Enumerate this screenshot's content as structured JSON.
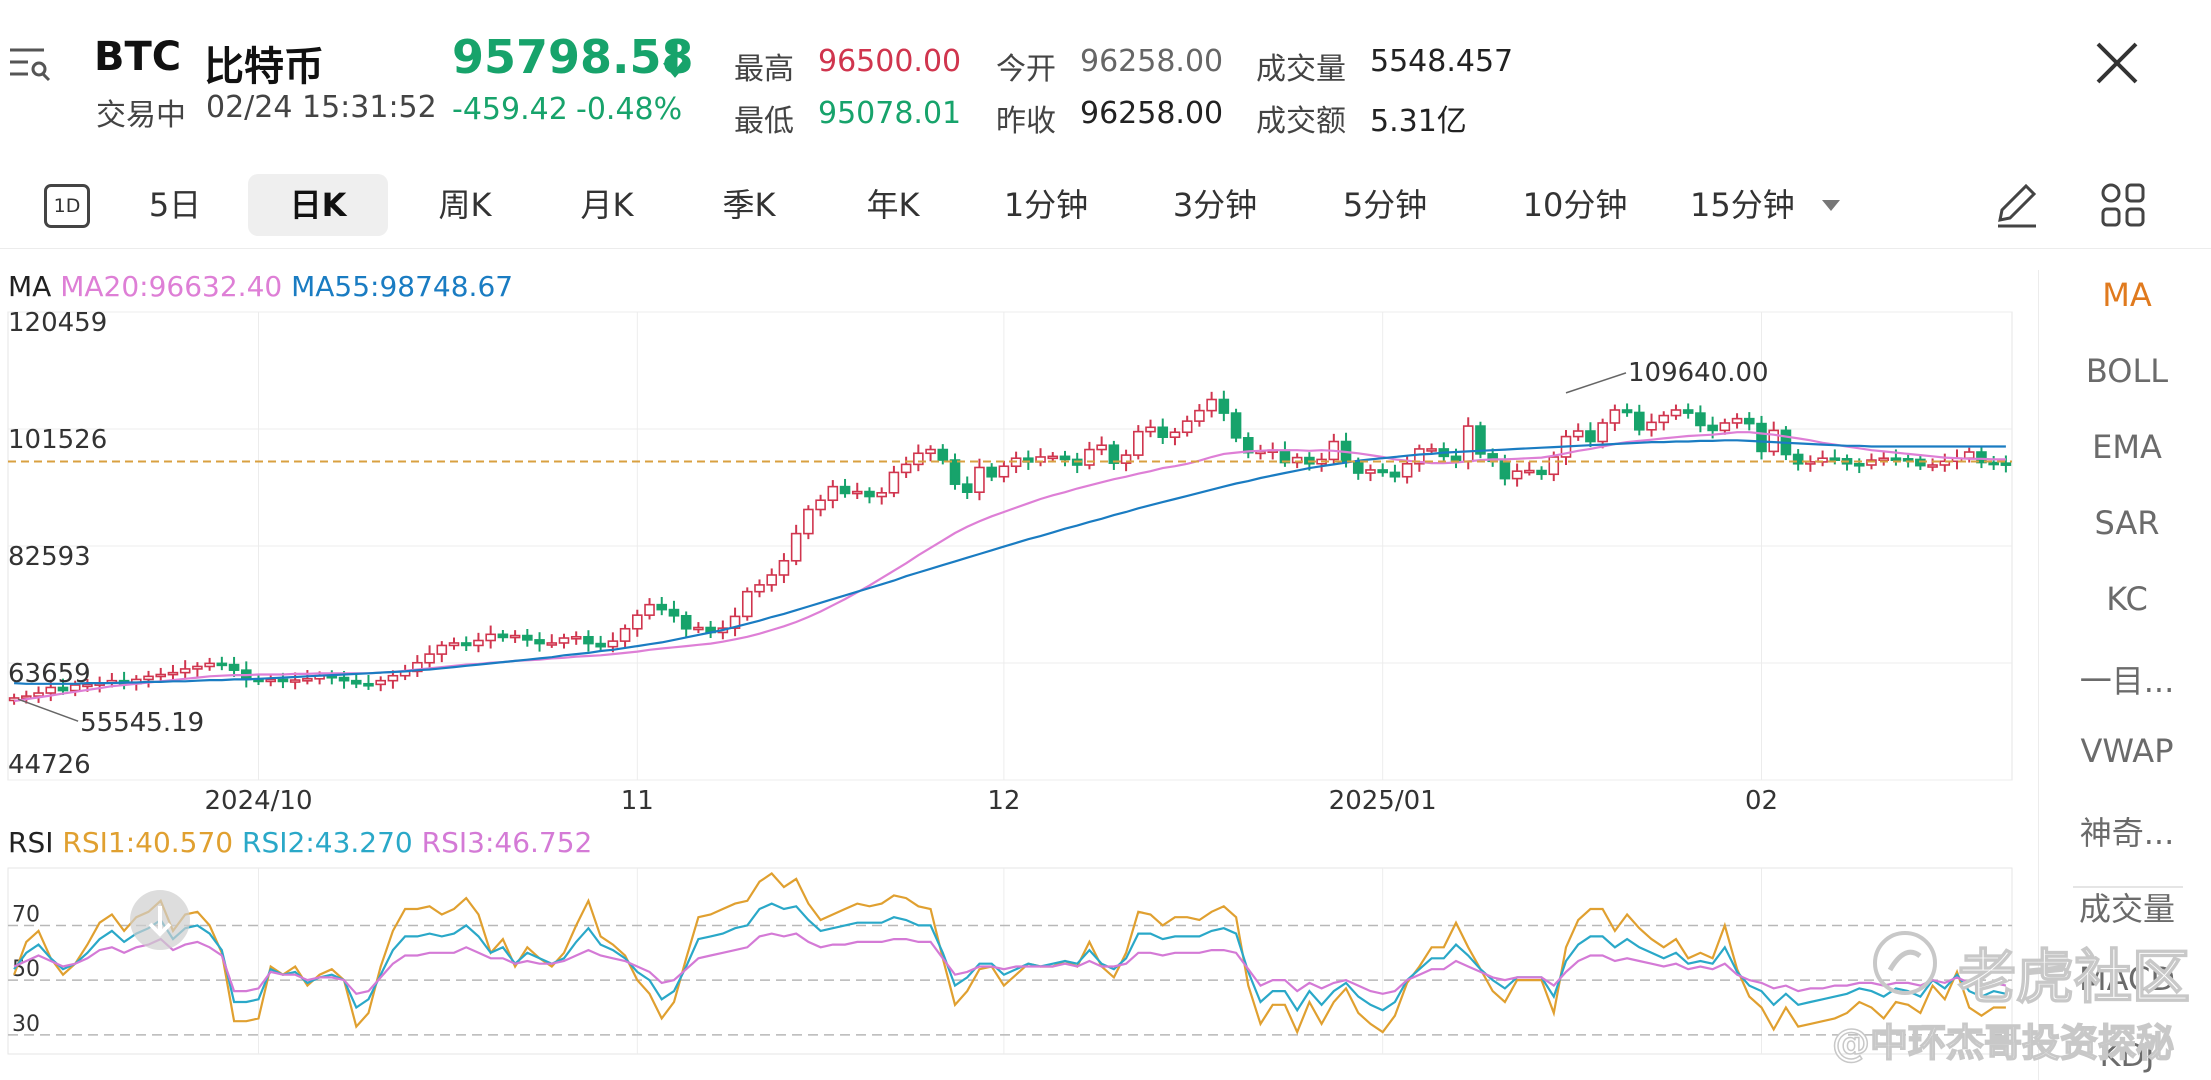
{
  "header": {
    "menu_icon": "menu-icon",
    "symbol": "BTC",
    "name": "比特币",
    "status": "交易中",
    "datetime": "02/24 15:31:52",
    "price": "95798.58",
    "direction_icon": "arrow-down-icon",
    "change": "-459.42",
    "change_pct": "-0.48%",
    "stats": [
      {
        "label": "最高",
        "value": "96500.00",
        "color": "#d0354e"
      },
      {
        "label": "最低",
        "value": "95078.01",
        "color": "#17a36b"
      },
      {
        "label": "今开",
        "value": "96258.00",
        "color": "#666666"
      },
      {
        "label": "昨收",
        "value": "96258.00",
        "color": "#222222"
      },
      {
        "label": "成交量",
        "value": "5548.457",
        "color": "#222222"
      },
      {
        "label": "成交额",
        "value": "5.31亿",
        "color": "#222222"
      }
    ],
    "close_icon": "close-icon"
  },
  "tabs": {
    "icon_label": "1D",
    "items": [
      "5日",
      "日K",
      "周K",
      "月K",
      "季K",
      "年K",
      "1分钟",
      "3分钟",
      "5分钟",
      "10分钟",
      "15分钟"
    ],
    "active": "日K",
    "draw_icon": "pencil-icon",
    "grid_icon": "grid-icon"
  },
  "colors": {
    "up": "#d0354e",
    "down": "#17a36b",
    "ma20": "#de7fd6",
    "ma55": "#1a7cc2",
    "rsi1": "#e0a030",
    "rsi2": "#2aa8c8",
    "rsi3": "#d47ad6",
    "accent": "#e07a1e"
  },
  "indicators": {
    "items": [
      "MA",
      "BOLL",
      "EMA",
      "SAR",
      "KC",
      "一目...",
      "VWAP",
      "神奇...",
      "成交量",
      "MACD",
      "KDJ"
    ],
    "active": "MA"
  },
  "main_legend": {
    "name": "MA",
    "ma20": "MA20:96632.40",
    "ma55": "MA55:98748.67"
  },
  "rsi_legend": {
    "name": "RSI",
    "rsi1": "RSI1:40.570",
    "rsi2": "RSI2:43.270",
    "rsi3": "RSI3:46.752"
  },
  "watermark": {
    "line1": "老虎社区",
    "line2": "@中环杰哥投资探秘"
  },
  "chart_data": [
    {
      "type": "candlestick",
      "y_ticks": [
        "120459",
        "101526",
        "82593",
        "63659",
        "44726"
      ],
      "ylim": [
        44726,
        120459
      ],
      "x_ticks": [
        {
          "label": "2024/10",
          "i": 20
        },
        {
          "label": "11",
          "i": 51
        },
        {
          "label": "12",
          "i": 81
        },
        {
          "label": "2025/01",
          "i": 112
        },
        {
          "label": "02",
          "i": 143
        }
      ],
      "max_label": "109640.00",
      "min_label": "55545.19",
      "current_price": 96258,
      "close": [
        58000,
        58300,
        58800,
        59700,
        59200,
        60100,
        60200,
        60400,
        60800,
        60300,
        61000,
        61500,
        61800,
        62100,
        62700,
        63100,
        63600,
        63400,
        62500,
        61000,
        60800,
        61000,
        60700,
        60900,
        61100,
        61600,
        61300,
        60800,
        60300,
        60200,
        60800,
        61600,
        62300,
        63700,
        65100,
        66500,
        66900,
        66500,
        67300,
        68300,
        67800,
        68100,
        67400,
        66800,
        66900,
        67700,
        67900,
        66800,
        66300,
        67200,
        69200,
        71400,
        73100,
        72300,
        71300,
        69200,
        69400,
        68600,
        69300,
        71200,
        75200,
        76300,
        77900,
        80200,
        84600,
        88500,
        90000,
        92200,
        91100,
        91400,
        90600,
        91200,
        94500,
        95800,
        97600,
        98200,
        96500,
        92600,
        91300,
        95300,
        93800,
        95500,
        96800,
        96200,
        97000,
        97100,
        96600,
        95700,
        98200,
        98900,
        96000,
        97300,
        101100,
        101800,
        100200,
        101000,
        102800,
        104500,
        106300,
        104100,
        100100,
        97700,
        97900,
        98100,
        96100,
        96900,
        95900,
        96600,
        99500,
        96200,
        94400,
        94900,
        94500,
        93800,
        95900,
        98300,
        98300,
        97100,
        96300,
        102000,
        97500,
        96300,
        93500,
        94700,
        94800,
        94200,
        97000,
        100300,
        101200,
        99500,
        102500,
        104600,
        104200,
        101400,
        102600,
        103700,
        104600,
        104100,
        102100,
        101300,
        102500,
        103200,
        102400,
        97900,
        101300,
        97400,
        95900,
        96200,
        96800,
        96700,
        95900,
        95700,
        96500,
        96800,
        96700,
        96600,
        95600,
        95700,
        96300,
        96800,
        97800,
        96100,
        96000,
        95800
      ],
      "ma20": [
        57500,
        57800,
        58100,
        58400,
        58700,
        59000,
        59300,
        59600,
        59900,
        60100,
        60300,
        60500,
        60700,
        60900,
        61100,
        61300,
        61500,
        61600,
        61700,
        61700,
        61800,
        61800,
        61800,
        61900,
        61900,
        62000,
        62000,
        62000,
        62000,
        62000,
        62100,
        62200,
        62400,
        62600,
        62800,
        63000,
        63200,
        63400,
        63500,
        63700,
        63800,
        64000,
        64100,
        64200,
        64400,
        64500,
        64700,
        64800,
        64900,
        65100,
        65300,
        65500,
        65800,
        66000,
        66200,
        66400,
        66600,
        66800,
        67100,
        67500,
        67900,
        68400,
        69000,
        69600,
        70300,
        71100,
        72000,
        73000,
        74000,
        75100,
        76200,
        77400,
        78600,
        79800,
        81100,
        82300,
        83500,
        84700,
        85700,
        86600,
        87400,
        88100,
        88800,
        89500,
        90200,
        90800,
        91300,
        91900,
        92400,
        92900,
        93400,
        93800,
        94300,
        94700,
        95200,
        95500,
        95900,
        96400,
        97000,
        97500,
        97700,
        97900,
        98000,
        98100,
        98100,
        98100,
        98000,
        98100,
        98000,
        97800,
        97600,
        97300,
        97000,
        96600,
        96400,
        96200,
        96000,
        96000,
        96100,
        96300,
        96500,
        96600,
        96600,
        96700,
        96800,
        96900,
        97200,
        97600,
        98000,
        98300,
        98700,
        99100,
        99400,
        99600,
        99800,
        100000,
        100200,
        100400,
        100500,
        100600,
        100800,
        101000,
        101000,
        100800,
        100600,
        100300,
        100000,
        99700,
        99300,
        99000,
        98700,
        98400,
        98100,
        97900,
        97700,
        97500,
        97300,
        97100,
        96900,
        96800,
        96700,
        96700,
        96600,
        96600
      ],
      "ma55": [
        60400,
        60300,
        60300,
        60300,
        60300,
        60300,
        60400,
        60400,
        60400,
        60500,
        60500,
        60600,
        60600,
        60700,
        60700,
        60800,
        60900,
        60900,
        61000,
        61000,
        61100,
        61200,
        61300,
        61400,
        61500,
        61600,
        61700,
        61800,
        61900,
        62000,
        62100,
        62200,
        62300,
        62500,
        62600,
        62800,
        63000,
        63200,
        63400,
        63600,
        63800,
        64000,
        64200,
        64400,
        64600,
        64900,
        65100,
        65300,
        65600,
        65800,
        66100,
        66400,
        66700,
        67000,
        67400,
        67800,
        68200,
        68600,
        69000,
        69500,
        70000,
        70500,
        71100,
        71600,
        72200,
        72800,
        73400,
        74000,
        74600,
        75200,
        75800,
        76400,
        77000,
        77700,
        78300,
        78900,
        79500,
        80100,
        80700,
        81300,
        81900,
        82500,
        83100,
        83700,
        84200,
        84800,
        85400,
        85900,
        86500,
        87000,
        87600,
        88100,
        88700,
        89200,
        89700,
        90200,
        90700,
        91200,
        91700,
        92200,
        92700,
        93100,
        93600,
        94000,
        94400,
        94800,
        95200,
        95500,
        95800,
        96100,
        96400,
        96600,
        96800,
        97000,
        97200,
        97400,
        97500,
        97700,
        97800,
        97900,
        98000,
        98100,
        98200,
        98300,
        98400,
        98500,
        98600,
        98700,
        98800,
        98900,
        99000,
        99100,
        99200,
        99300,
        99400,
        99400,
        99500,
        99500,
        99600,
        99600,
        99700,
        99700,
        99600,
        99500,
        99400,
        99300,
        99200,
        99100,
        99000,
        98900,
        98800,
        98800,
        98700,
        98700,
        98700,
        98700,
        98700,
        98700,
        98700,
        98700,
        98700,
        98700,
        98700,
        98700
      ]
    },
    {
      "type": "line",
      "name": "RSI",
      "y_ticks": [
        "70",
        "50",
        "30"
      ],
      "ylim": [
        23,
        91
      ],
      "series": [
        {
          "name": "RSI1",
          "values": [
            52,
            64,
            68,
            58,
            52,
            56,
            63,
            71,
            74,
            68,
            73,
            75,
            79,
            68,
            74,
            75,
            70,
            60,
            35,
            35,
            36,
            55,
            52,
            55,
            48,
            52,
            54,
            50,
            33,
            38,
            55,
            68,
            76,
            76,
            77,
            74,
            76,
            80,
            74,
            60,
            65,
            55,
            62,
            58,
            55,
            60,
            70,
            79,
            66,
            63,
            59,
            50,
            45,
            36,
            42,
            58,
            73,
            74,
            76,
            78,
            79,
            86,
            89,
            84,
            87,
            78,
            72,
            74,
            76,
            78,
            77,
            78,
            81,
            80,
            77,
            76,
            58,
            41,
            46,
            54,
            55,
            48,
            52,
            56,
            55,
            55,
            57,
            55,
            64,
            55,
            51,
            60,
            75,
            74,
            70,
            73,
            73,
            72,
            75,
            77,
            73,
            48,
            34,
            41,
            41,
            31,
            42,
            34,
            42,
            47,
            38,
            34,
            31,
            37,
            49,
            55,
            62,
            62,
            71,
            62,
            54,
            46,
            42,
            50,
            50,
            50,
            38,
            62,
            72,
            76,
            76,
            68,
            74,
            69,
            65,
            62,
            65,
            58,
            60,
            58,
            70,
            54,
            44,
            40,
            32,
            40,
            33,
            34,
            35,
            36,
            38,
            42,
            40,
            36,
            42,
            41,
            38,
            48,
            43,
            53,
            40,
            37,
            40,
            40
          ]
        },
        {
          "name": "RSI2",
          "values": [
            54,
            60,
            63,
            58,
            54,
            56,
            60,
            65,
            68,
            64,
            67,
            69,
            72,
            65,
            69,
            70,
            67,
            61,
            42,
            42,
            43,
            54,
            52,
            53,
            49,
            51,
            52,
            50,
            40,
            43,
            52,
            61,
            66,
            66,
            67,
            66,
            67,
            70,
            66,
            60,
            62,
            56,
            60,
            58,
            56,
            58,
            64,
            69,
            63,
            61,
            58,
            53,
            50,
            43,
            46,
            55,
            65,
            66,
            67,
            69,
            70,
            76,
            78,
            76,
            77,
            72,
            68,
            69,
            70,
            71,
            71,
            71,
            73,
            72,
            70,
            70,
            60,
            48,
            51,
            56,
            56,
            52,
            54,
            56,
            55,
            56,
            57,
            56,
            61,
            56,
            54,
            58,
            67,
            67,
            65,
            66,
            66,
            66,
            68,
            69,
            67,
            53,
            42,
            46,
            46,
            39,
            46,
            41,
            46,
            49,
            44,
            41,
            39,
            42,
            50,
            54,
            58,
            58,
            63,
            59,
            54,
            50,
            47,
            51,
            51,
            51,
            44,
            57,
            63,
            66,
            66,
            62,
            65,
            62,
            60,
            58,
            60,
            56,
            57,
            56,
            62,
            53,
            48,
            46,
            41,
            45,
            41,
            42,
            43,
            44,
            45,
            47,
            46,
            44,
            47,
            46,
            44,
            50,
            47,
            52,
            46,
            44,
            46,
            45
          ]
        },
        {
          "name": "RSI3",
          "values": [
            55,
            57,
            59,
            57,
            55,
            56,
            58,
            61,
            62,
            60,
            62,
            63,
            65,
            61,
            63,
            64,
            62,
            59,
            46,
            46,
            47,
            53,
            52,
            52,
            50,
            51,
            51,
            50,
            45,
            46,
            51,
            56,
            59,
            59,
            60,
            60,
            60,
            62,
            60,
            58,
            58,
            56,
            57,
            56,
            56,
            57,
            59,
            61,
            59,
            58,
            57,
            55,
            53,
            49,
            50,
            54,
            58,
            59,
            60,
            61,
            62,
            66,
            67,
            66,
            67,
            64,
            62,
            63,
            63,
            64,
            64,
            64,
            65,
            65,
            64,
            64,
            58,
            52,
            53,
            55,
            55,
            54,
            55,
            55,
            55,
            55,
            56,
            55,
            57,
            55,
            55,
            56,
            60,
            60,
            59,
            60,
            60,
            60,
            61,
            61,
            60,
            54,
            48,
            50,
            50,
            46,
            49,
            47,
            49,
            50,
            48,
            46,
            45,
            46,
            50,
            52,
            54,
            54,
            57,
            55,
            53,
            51,
            50,
            51,
            51,
            51,
            48,
            53,
            57,
            59,
            59,
            57,
            58,
            57,
            56,
            55,
            56,
            54,
            55,
            54,
            56,
            52,
            50,
            49,
            47,
            48,
            46,
            47,
            47,
            48,
            48,
            49,
            49,
            48,
            49,
            49,
            48,
            50,
            49,
            51,
            49,
            48,
            49,
            48
          ]
        }
      ]
    }
  ]
}
